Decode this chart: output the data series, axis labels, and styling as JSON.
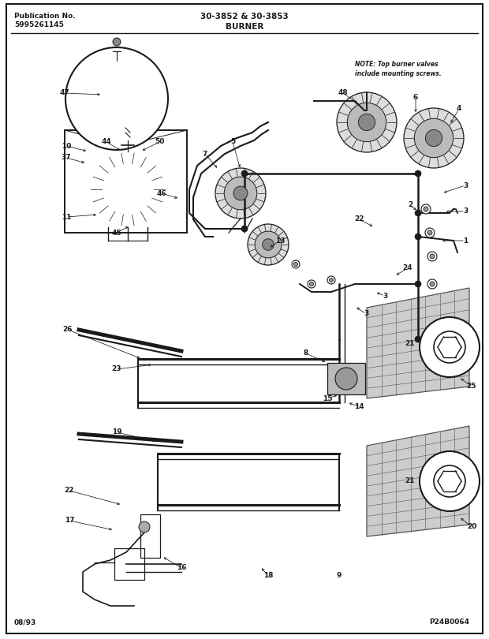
{
  "title_center": "30-3852 & 30-3853",
  "title_section": "BURNER",
  "pub_label": "Publication No.",
  "pub_number": "5995261145",
  "date_code": "08/93",
  "part_code": "P24B0064",
  "note_text": "NOTE: Top burner valves\ninclude mounting screws.",
  "bg_color": "#ffffff",
  "fig_width": 6.2,
  "fig_height": 8.1,
  "dpi": 100
}
